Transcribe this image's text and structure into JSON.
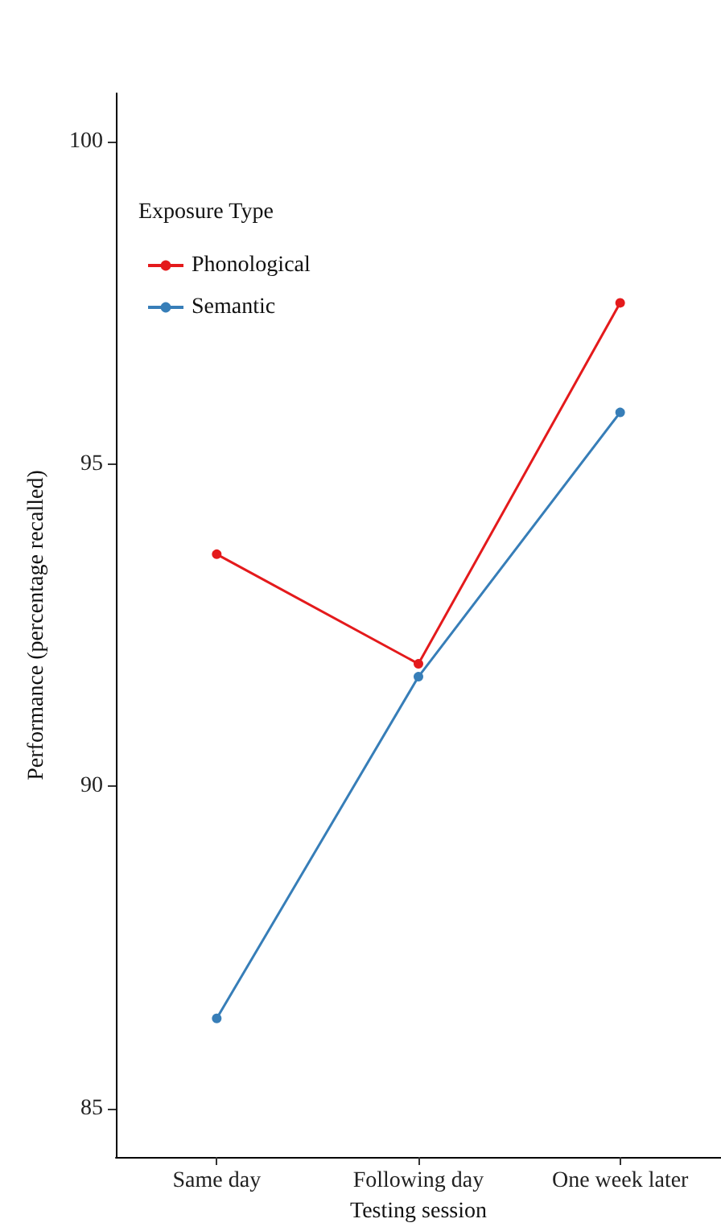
{
  "chart_data": {
    "type": "line",
    "xlabel": "Testing session",
    "ylabel": "Performance (percentage recalled)",
    "legend_title": "Exposure Type",
    "categories": [
      "Same day",
      "Following day",
      "One week later"
    ],
    "series": [
      {
        "name": "Phonological",
        "color": "#e41a1c",
        "values": [
          93.6,
          91.9,
          97.5
        ]
      },
      {
        "name": "Semantic",
        "color": "#377eb8",
        "values": [
          86.4,
          91.7,
          95.8
        ]
      }
    ],
    "ylim": [
      84.25,
      100.75
    ],
    "yticks": [
      85,
      90,
      95,
      100
    ],
    "grid": false,
    "legend": "top left",
    "marker": "circle",
    "line_style": "solid"
  }
}
